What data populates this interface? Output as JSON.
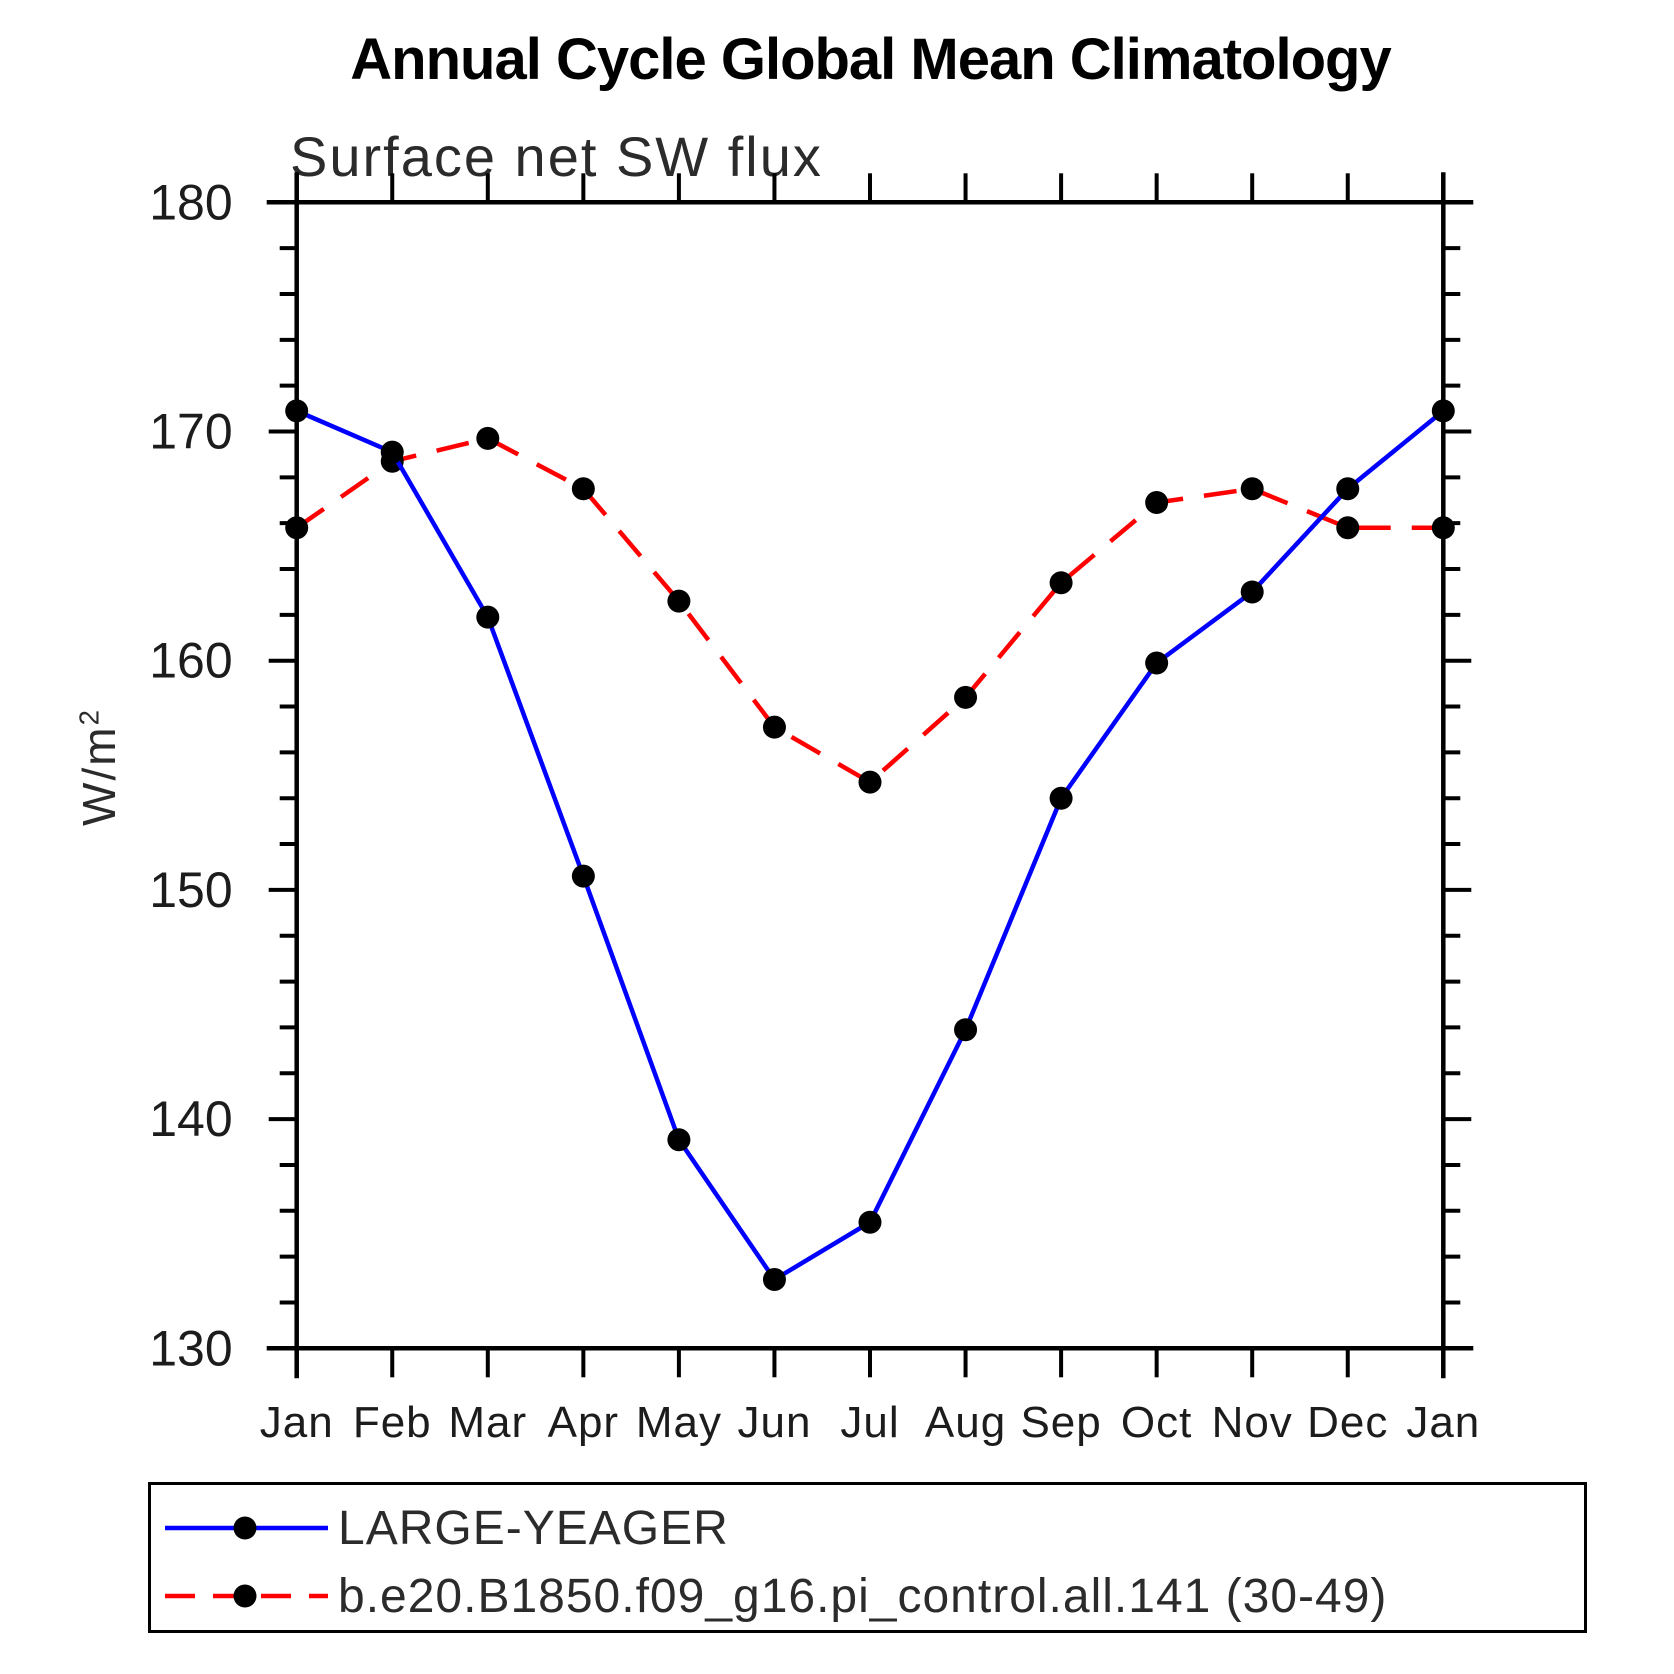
{
  "chart_data": {
    "type": "line",
    "title": "Annual Cycle Global Mean Climatology",
    "subtitle": "Surface net SW flux",
    "ylabel_base": "W/m",
    "ylabel_sup": "2",
    "categories": [
      "Jan",
      "Feb",
      "Mar",
      "Apr",
      "May",
      "Jun",
      "Jul",
      "Aug",
      "Sep",
      "Oct",
      "Nov",
      "Dec",
      "Jan"
    ],
    "ylim": [
      130,
      180
    ],
    "y_major_step": 10,
    "y_minor_step": 2,
    "y_tick_labels": [
      "130",
      "140",
      "150",
      "160",
      "170",
      "180"
    ],
    "grid": "off",
    "legend_position": "bottom",
    "marker_color": "#000000",
    "series": [
      {
        "name": "LARGE-YEAGER",
        "color": "#0000ff",
        "style": "solid",
        "marker": "filled-circle",
        "values": [
          170.9,
          169.1,
          161.9,
          150.6,
          139.1,
          133.0,
          135.5,
          143.9,
          154.0,
          159.9,
          163.0,
          167.5,
          170.9
        ]
      },
      {
        "name": "b.e20.B1850.f09_g16.pi_control.all.141 (30-49)",
        "color": "#ff0000",
        "style": "dashed",
        "marker": "filled-circle",
        "values": [
          165.8,
          168.7,
          169.7,
          167.5,
          162.6,
          157.1,
          154.7,
          158.4,
          163.4,
          166.9,
          167.5,
          165.8,
          165.8
        ]
      }
    ]
  }
}
